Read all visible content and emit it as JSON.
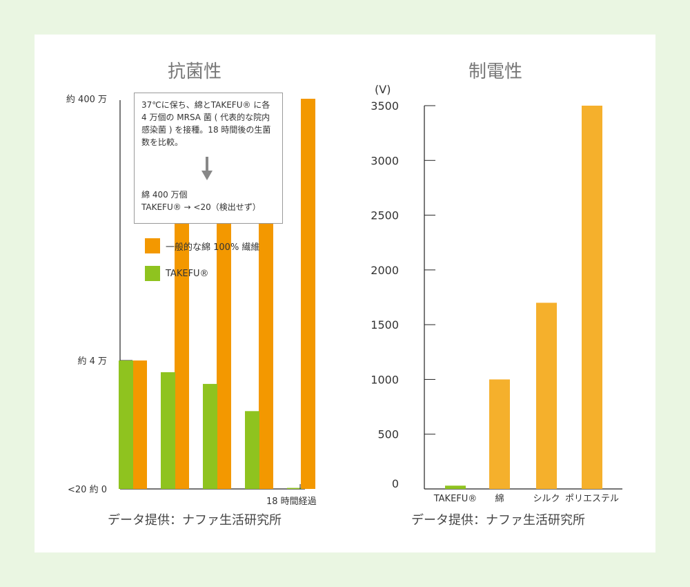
{
  "left_chart": {
    "title": "抗菌性",
    "source": "データ提供：ナファ生活研究所",
    "note": {
      "description": "37℃に保ち、綿とTAKEFU® に各 4 万個の MRSA 菌 ( 代表的な院内感染菌 ) を接種。18 時間後の生菌数を比較。",
      "result_line1": "綿 400 万個",
      "result_line2": "TAKEFU® → <20（検出せず）"
    },
    "legend": [
      {
        "label": "一般的な綿 100% 繊維",
        "color": "#f39800"
      },
      {
        "label": "TAKEFU®",
        "color": "#8fc31f"
      }
    ]
  },
  "right_chart": {
    "title": "制電性",
    "source": "データ提供：ナファ生活研究所"
  },
  "chart_data": [
    {
      "type": "bar",
      "title": "抗菌性",
      "y_tick_labels": [
        "<20 約 0",
        "約 4 万",
        "約 400 万"
      ],
      "x_tick_labels": [
        "18 時間経過"
      ],
      "series": [
        {
          "name": "一般的な綿 100% 繊維",
          "color": "#f39800",
          "values": [
            40000,
            600000,
            1200000,
            2200000,
            4000000
          ]
        },
        {
          "name": "TAKEFU®",
          "color": "#8fc31f",
          "values": [
            40000,
            20000,
            10000,
            2000,
            20
          ]
        }
      ],
      "grid": false
    },
    {
      "type": "bar",
      "title": "制電性",
      "ylabel": "(V)",
      "categories": [
        "TAKEFU®",
        "綿",
        "シルク",
        "ポリエステル"
      ],
      "values": [
        30,
        1000,
        1700,
        3500
      ],
      "ylim": [
        0,
        3500
      ],
      "yticks": [
        0,
        500,
        1000,
        1500,
        2000,
        2500,
        3000,
        3500
      ],
      "color": "#f5b02c",
      "takefu_color": "#8fc31f",
      "grid": false
    }
  ]
}
